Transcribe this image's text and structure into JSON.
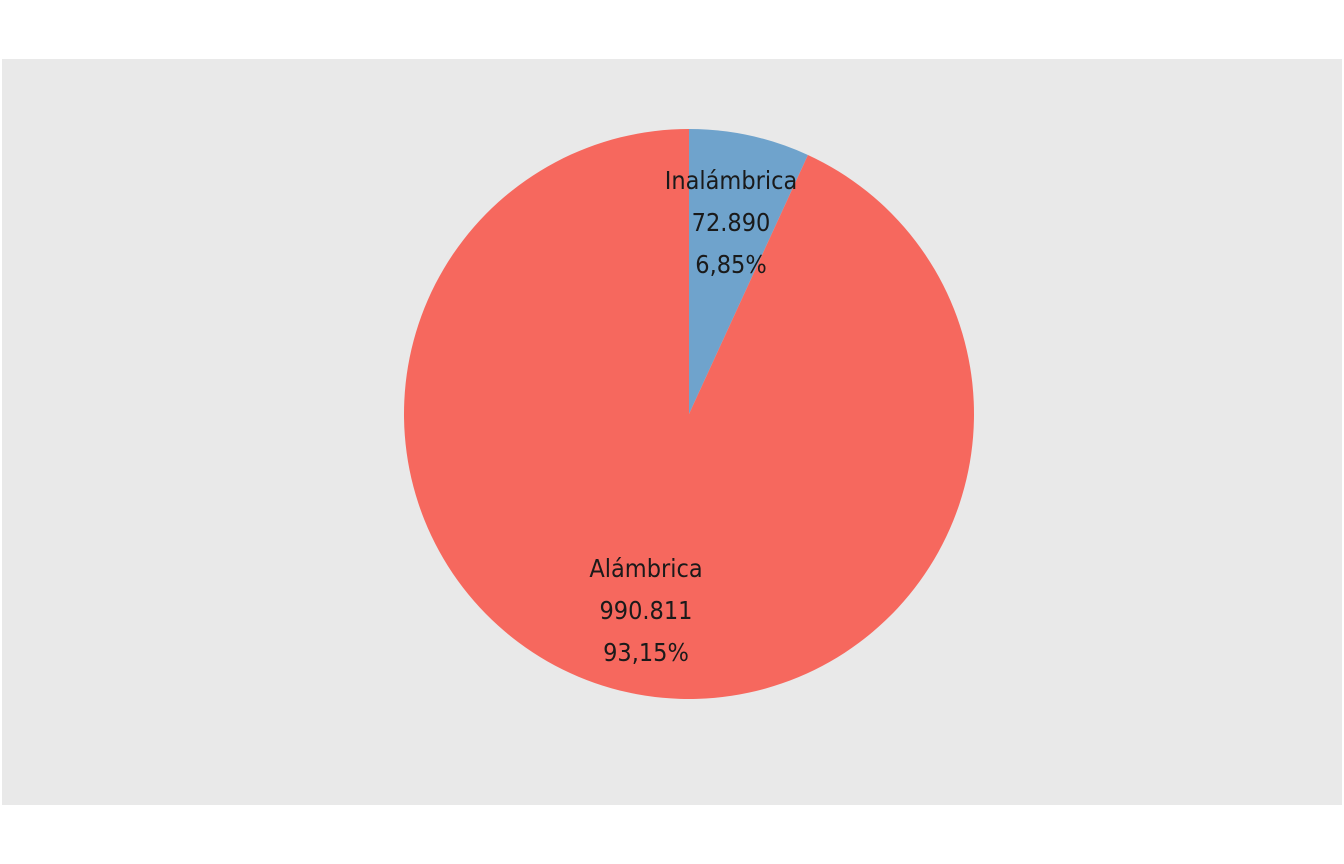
{
  "chart_data": {
    "type": "pie",
    "start_angle_deg": 0,
    "direction": "clockwise",
    "slices": [
      {
        "label": "Inalámbrica",
        "value_text": "72.890",
        "percent_text": "6,85%",
        "value": 72890,
        "percent": 6.85,
        "color": "#6fa3cc"
      },
      {
        "label": "Alámbrica",
        "value_text": "990.811",
        "percent_text": "93,15%",
        "value": 990811,
        "percent": 93.15,
        "color": "#f6685e"
      }
    ],
    "background": "#e9e9e9"
  }
}
